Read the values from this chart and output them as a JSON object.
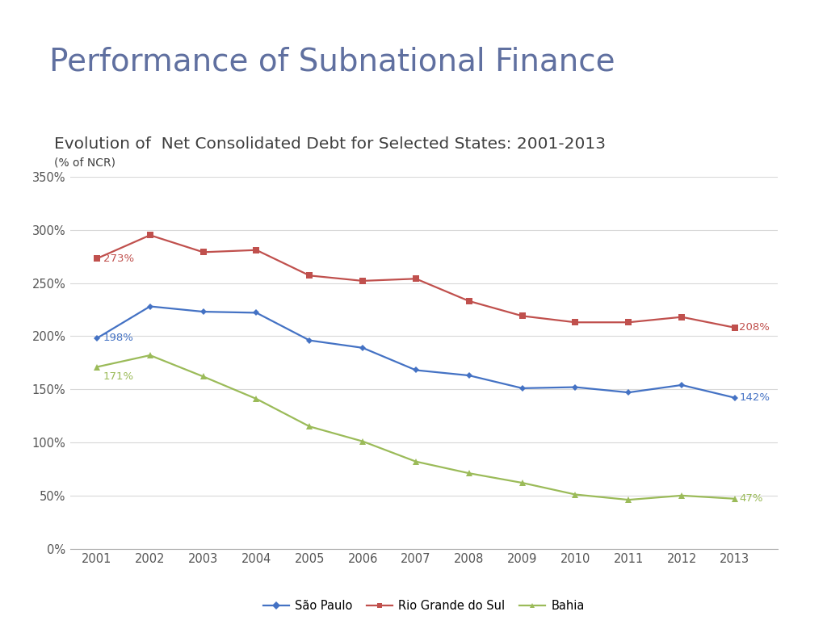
{
  "title": "Performance of Subnational Finance",
  "subtitle": "Evolution of  Net Consolidated Debt for Selected States: 2001-2013",
  "ylabel_small": "(% of NCR)",
  "years": [
    2001,
    2002,
    2003,
    2004,
    2005,
    2006,
    2007,
    2008,
    2009,
    2010,
    2011,
    2012,
    2013
  ],
  "sao_paulo": [
    198,
    228,
    223,
    222,
    196,
    189,
    168,
    163,
    151,
    152,
    147,
    154,
    142
  ],
  "rio_grande": [
    273,
    295,
    279,
    281,
    257,
    252,
    254,
    233,
    219,
    213,
    213,
    218,
    208
  ],
  "bahia": [
    171,
    182,
    162,
    141,
    115,
    101,
    82,
    71,
    62,
    51,
    46,
    50,
    47
  ],
  "color_sao_paulo": "#4472C4",
  "color_rio_grande": "#C0504D",
  "color_bahia": "#9BBB59",
  "ylim": [
    0,
    350
  ],
  "yticks": [
    0,
    50,
    100,
    150,
    200,
    250,
    300,
    350
  ],
  "ytick_labels": [
    "0%",
    "50%",
    "100%",
    "150%",
    "200%",
    "250%",
    "300%",
    "350%"
  ],
  "title_color": "#6070A0",
  "subtitle_color": "#404040",
  "banner_color": "#6070A0",
  "banner_left_color": "#A0B0C8",
  "bg_color": "#FFFFFF",
  "legend_labels": [
    "São Paulo",
    "Rio Grande do Sul",
    "Bahia"
  ],
  "ann_rg_start": "273%",
  "ann_sp_start": "198%",
  "ann_ba_start": "171%",
  "ann_rg_end": "208%",
  "ann_sp_end": "142%",
  "ann_ba_end": "47%"
}
